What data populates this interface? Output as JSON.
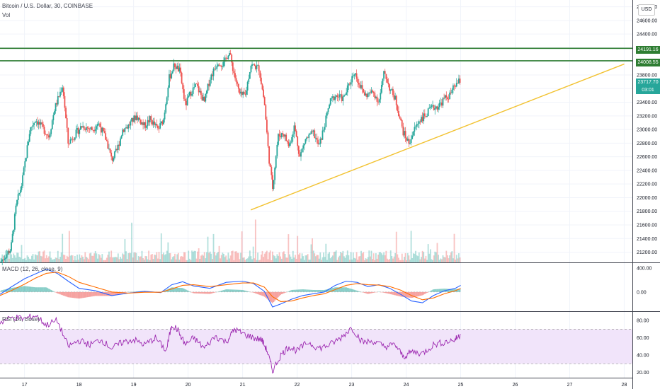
{
  "header": {
    "symbol_title": "Bitcoin / U.S. Dollar, 30, COINBASE",
    "volume_label": "Vol",
    "currency_button": "USD",
    "macd_label": "MACD (12, 26, close, 9)",
    "rsi_label": "RSI (14, close)"
  },
  "price_tags": {
    "resistance_upper": "24191.16",
    "resistance_lower": "24008.55",
    "last_price": "23717.70",
    "countdown": "03:01"
  },
  "colors": {
    "up": "#26a69a",
    "down": "#ef5350",
    "resistance": "#2e7d32",
    "trendline": "#f2c230",
    "macd_line": "#2962ff",
    "signal_line": "#ff6d00",
    "rsi_line": "#9c27b0",
    "rsi_band": "#f1e4fa",
    "grid": "#f0f3fa",
    "axis_text": "#131722"
  },
  "chart_data": [
    {
      "type": "candlestick",
      "title": "Bitcoin / U.S. Dollar, 30, COINBASE",
      "x_ticks": [
        "17",
        "18",
        "19",
        "20",
        "21",
        "22",
        "23",
        "24",
        "25",
        "26",
        "27",
        "28"
      ],
      "y_ticks": [
        "21200.00",
        "21400.00",
        "21600.00",
        "21800.00",
        "22000.00",
        "22200.00",
        "22400.00",
        "22600.00",
        "22800.00",
        "23000.00",
        "23200.00",
        "23400.00",
        "23600.00",
        "23800.00",
        "24000.00",
        "24200.00",
        "24400.00",
        "24600.00",
        "24800.00"
      ],
      "ylim": [
        21050,
        24900
      ],
      "xlim": [
        16.55,
        28.15
      ],
      "data_end_day": 25.0,
      "grid": true,
      "resistance_levels": [
        24191.16,
        24008.55
      ],
      "trendline": {
        "x": [
          21.15,
          28.0
        ],
        "y": [
          21820,
          23960
        ]
      },
      "price_path": [
        [
          16.55,
          21050
        ],
        [
          16.75,
          21250
        ],
        [
          16.85,
          21900
        ],
        [
          16.95,
          22200
        ],
        [
          17.1,
          23000
        ],
        [
          17.2,
          23150
        ],
        [
          17.3,
          23050
        ],
        [
          17.45,
          22900
        ],
        [
          17.55,
          23300
        ],
        [
          17.7,
          23650
        ],
        [
          17.8,
          22800
        ],
        [
          17.9,
          22900
        ],
        [
          18.05,
          23050
        ],
        [
          18.25,
          23000
        ],
        [
          18.35,
          23100
        ],
        [
          18.5,
          22850
        ],
        [
          18.6,
          22550
        ],
        [
          18.7,
          22700
        ],
        [
          18.8,
          23000
        ],
        [
          18.9,
          23050
        ],
        [
          19.05,
          23200
        ],
        [
          19.2,
          23050
        ],
        [
          19.3,
          23150
        ],
        [
          19.45,
          23000
        ],
        [
          19.55,
          23150
        ],
        [
          19.65,
          23750
        ],
        [
          19.75,
          23950
        ],
        [
          19.85,
          23850
        ],
        [
          19.95,
          23350
        ],
        [
          20.05,
          23550
        ],
        [
          20.15,
          23650
        ],
        [
          20.3,
          23400
        ],
        [
          20.4,
          23750
        ],
        [
          20.55,
          24000
        ],
        [
          20.65,
          23950
        ],
        [
          20.75,
          24150
        ],
        [
          20.85,
          23800
        ],
        [
          20.95,
          23500
        ],
        [
          21.05,
          23500
        ],
        [
          21.15,
          23950
        ],
        [
          21.3,
          23900
        ],
        [
          21.4,
          23400
        ],
        [
          21.48,
          22600
        ],
        [
          21.55,
          22150
        ],
        [
          21.65,
          22900
        ],
        [
          21.75,
          22950
        ],
        [
          21.85,
          22750
        ],
        [
          21.95,
          23050
        ],
        [
          22.05,
          22600
        ],
        [
          22.15,
          22850
        ],
        [
          22.3,
          22950
        ],
        [
          22.4,
          22750
        ],
        [
          22.5,
          23050
        ],
        [
          22.6,
          23400
        ],
        [
          22.7,
          23500
        ],
        [
          22.85,
          23450
        ],
        [
          22.95,
          23650
        ],
        [
          23.05,
          23850
        ],
        [
          23.15,
          23650
        ],
        [
          23.25,
          23500
        ],
        [
          23.4,
          23550
        ],
        [
          23.5,
          23400
        ],
        [
          23.6,
          23850
        ],
        [
          23.7,
          23600
        ],
        [
          23.8,
          23450
        ],
        [
          23.95,
          22950
        ],
        [
          24.05,
          22800
        ],
        [
          24.15,
          23000
        ],
        [
          24.25,
          23150
        ],
        [
          24.35,
          23200
        ],
        [
          24.45,
          23300
        ],
        [
          24.6,
          23350
        ],
        [
          24.7,
          23450
        ],
        [
          24.8,
          23500
        ],
        [
          24.9,
          23650
        ],
        [
          25.0,
          23720
        ]
      ]
    },
    {
      "type": "histogram_with_lines",
      "title": "MACD (12, 26, close, 9)",
      "y_ticks": [
        "400.00",
        "0.00"
      ],
      "ylim": [
        -320,
        480
      ],
      "series": [
        {
          "name": "MACD",
          "x": [
            16.55,
            16.75,
            17.0,
            17.2,
            17.4,
            17.6,
            17.8,
            18.0,
            18.3,
            18.6,
            18.9,
            19.2,
            19.5,
            19.7,
            19.9,
            20.1,
            20.4,
            20.7,
            21.0,
            21.2,
            21.4,
            21.55,
            21.7,
            21.9,
            22.1,
            22.3,
            22.5,
            22.7,
            22.9,
            23.1,
            23.3,
            23.5,
            23.7,
            23.9,
            24.1,
            24.3,
            24.5,
            24.7,
            24.9,
            25.0
          ],
          "values": [
            -40,
            80,
            220,
            300,
            380,
            310,
            180,
            60,
            20,
            -60,
            -20,
            10,
            -10,
            120,
            170,
            100,
            60,
            160,
            180,
            140,
            10,
            -250,
            -200,
            -120,
            -60,
            -30,
            0,
            110,
            180,
            160,
            90,
            120,
            60,
            -40,
            -150,
            -180,
            -60,
            20,
            60,
            110
          ]
        },
        {
          "name": "Signal",
          "x": [
            16.55,
            16.75,
            17.0,
            17.2,
            17.4,
            17.6,
            17.8,
            18.0,
            18.3,
            18.6,
            18.9,
            19.2,
            19.5,
            19.7,
            19.9,
            20.1,
            20.4,
            20.7,
            21.0,
            21.2,
            21.4,
            21.55,
            21.7,
            21.9,
            22.1,
            22.3,
            22.5,
            22.7,
            22.9,
            23.1,
            23.3,
            23.5,
            23.7,
            23.9,
            24.1,
            24.3,
            24.5,
            24.7,
            24.9,
            25.0
          ],
          "values": [
            -60,
            20,
            130,
            230,
            310,
            330,
            260,
            160,
            80,
            0,
            -20,
            -5,
            -5,
            50,
            110,
            120,
            90,
            120,
            150,
            150,
            80,
            -80,
            -160,
            -150,
            -100,
            -60,
            -30,
            40,
            110,
            140,
            120,
            115,
            90,
            30,
            -60,
            -130,
            -100,
            -30,
            20,
            60
          ]
        }
      ]
    },
    {
      "type": "line",
      "title": "RSI (14, close)",
      "y_ticks": [
        "80.00",
        "60.00",
        "40.00",
        "20.00"
      ],
      "ylim": [
        14,
        90
      ],
      "band": [
        30,
        70
      ],
      "series": [
        {
          "name": "RSI",
          "x": [
            16.55,
            16.8,
            17.0,
            17.2,
            17.4,
            17.6,
            17.8,
            18.0,
            18.2,
            18.4,
            18.6,
            18.8,
            19.0,
            19.2,
            19.4,
            19.6,
            19.7,
            19.8,
            19.95,
            20.1,
            20.3,
            20.5,
            20.7,
            20.85,
            21.0,
            21.2,
            21.35,
            21.45,
            21.55,
            21.7,
            21.85,
            22.0,
            22.2,
            22.4,
            22.6,
            22.8,
            23.0,
            23.2,
            23.4,
            23.6,
            23.8,
            23.95,
            24.1,
            24.3,
            24.5,
            24.7,
            24.9,
            25.0
          ],
          "values": [
            78,
            84,
            82,
            86,
            75,
            80,
            50,
            57,
            52,
            58,
            48,
            55,
            58,
            52,
            60,
            45,
            75,
            70,
            52,
            60,
            48,
            62,
            55,
            70,
            65,
            60,
            58,
            45,
            22,
            40,
            50,
            45,
            55,
            48,
            52,
            60,
            72,
            55,
            56,
            50,
            52,
            38,
            44,
            42,
            52,
            55,
            58,
            64
          ]
        }
      ]
    }
  ]
}
